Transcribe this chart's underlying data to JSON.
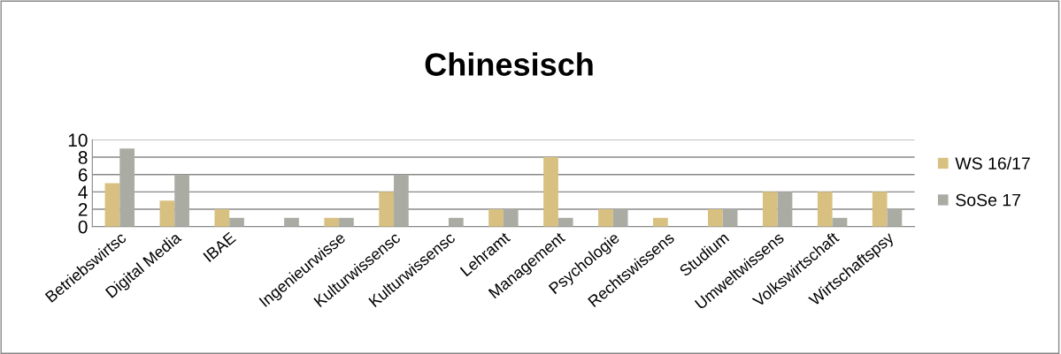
{
  "chart_data": {
    "type": "bar",
    "title": "Chinesisch",
    "categories": [
      "Betriebswirtsc",
      "Digital Media",
      "IBAE",
      null,
      "Ingenieurwisse",
      "Kulturwissensc",
      "Kulturwissensc",
      "Lehramt",
      "Management",
      "Psychologie",
      "Rechtswissens",
      "Studium",
      "Umweltwissens",
      "Volkswirtschaft",
      "Wirtschaftspsy"
    ],
    "series": [
      {
        "name": "WS 16/17",
        "color": "#d8c080",
        "values": [
          5,
          3,
          2,
          null,
          1,
          4,
          null,
          2,
          8,
          2,
          1,
          2,
          4,
          4,
          4
        ]
      },
      {
        "name": "SoSe 17",
        "color": "#aaaca4",
        "values": [
          9,
          6,
          1,
          1,
          1,
          6,
          1,
          2,
          1,
          2,
          null,
          2,
          4,
          1,
          2
        ]
      }
    ],
    "ylim": [
      0,
      10
    ],
    "yticks": [
      0,
      2,
      4,
      6,
      8,
      10
    ],
    "grid": "y",
    "legend": "right"
  }
}
